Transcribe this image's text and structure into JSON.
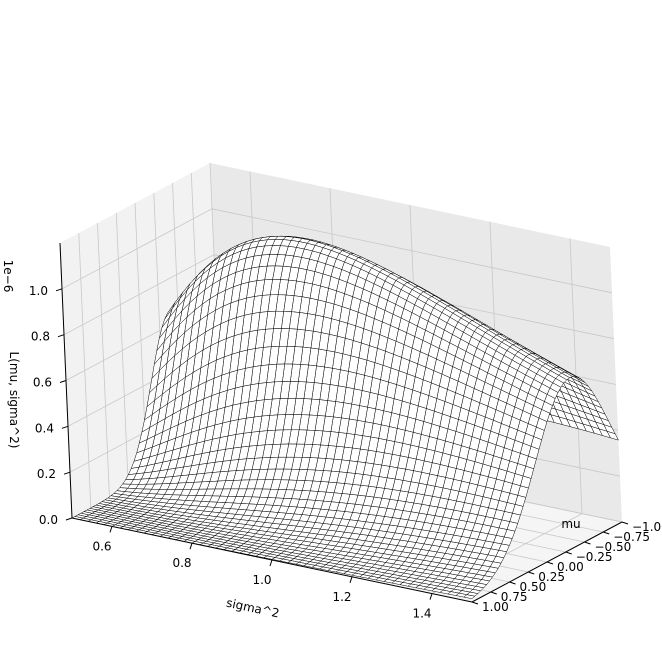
{
  "chart_data": {
    "type": "surface3d",
    "title": "",
    "x_axis": {
      "label": "sigma^2",
      "range": [
        0.5,
        1.5
      ],
      "ticks": [
        0.6,
        0.8,
        1.0,
        1.2,
        1.4
      ],
      "tick_labels": [
        "0.6",
        "0.8",
        "1.0",
        "1.2",
        "1.4"
      ]
    },
    "y_axis": {
      "label": "mu",
      "range": [
        -1.0,
        1.0
      ],
      "ticks": [
        -1.0,
        -0.75,
        -0.5,
        -0.25,
        0.0,
        0.25,
        0.5,
        0.75,
        1.0
      ],
      "tick_labels": [
        "−1.00",
        "−0.75",
        "−0.50",
        "−0.25",
        "0.00",
        "0.25",
        "0.50",
        "0.75",
        "1.00"
      ]
    },
    "z_axis": {
      "label": "L(mu, sigma^2)",
      "range": [
        0.0,
        1.2e-06
      ],
      "ticks": [
        0.0,
        2e-07,
        4e-07,
        6e-07,
        8e-07,
        1e-06
      ],
      "tick_labels": [
        "0.0",
        "0.2",
        "0.4",
        "0.6",
        "0.8",
        "1.0"
      ],
      "offset_label": "1e−6"
    },
    "surface": {
      "function": "gaussian likelihood L(mu, sigma^2) of sample data",
      "peak": {
        "mu": -0.4,
        "sigma2": 0.85,
        "value": 1.1e-06
      },
      "sigma2_grid": [
        0.5,
        1.5,
        51
      ],
      "mu_grid": [
        -1.0,
        1.0,
        51
      ],
      "wire_color": "#000000",
      "face_color": "#ffffff"
    },
    "grid": true,
    "pane_color": "#f2f2f2"
  }
}
